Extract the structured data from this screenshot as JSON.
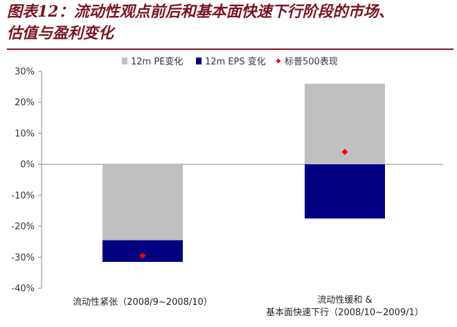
{
  "title": {
    "line1": "图表12：流动性观点前后和基本面快速下行阶段的市场、",
    "line2": "估值与盈利变化"
  },
  "colors": {
    "title": "#7b1420",
    "pe": "#c0c0c0",
    "eps": "#000080",
    "index": "#ff0000"
  },
  "chart_data": {
    "type": "bar",
    "stacked": true,
    "categories": [
      [
        "流动性紧张（2008/9~2008/10）"
      ],
      [
        "流动性缓和 &",
        "基本面快速下行（2008/10~2009/1）"
      ]
    ],
    "series": [
      {
        "name": "12m PE变化",
        "values": [
          -24.5,
          26.0
        ],
        "color": "#c0c0c0",
        "kind": "bar"
      },
      {
        "name": "12m EPS 变化",
        "values": [
          -7.0,
          -17.5
        ],
        "color": "#000080",
        "kind": "bar"
      },
      {
        "name": "标普500表现",
        "values": [
          -29.5,
          4.0
        ],
        "color": "#ff0000",
        "kind": "marker"
      }
    ],
    "yaxis": {
      "min": -40,
      "max": 30,
      "step": 10,
      "ticks": [
        "30%",
        "20%",
        "10%",
        "0%",
        "-10%",
        "-20%",
        "-30%",
        "-40%"
      ]
    },
    "legend_position": "top-center",
    "grid": false
  }
}
